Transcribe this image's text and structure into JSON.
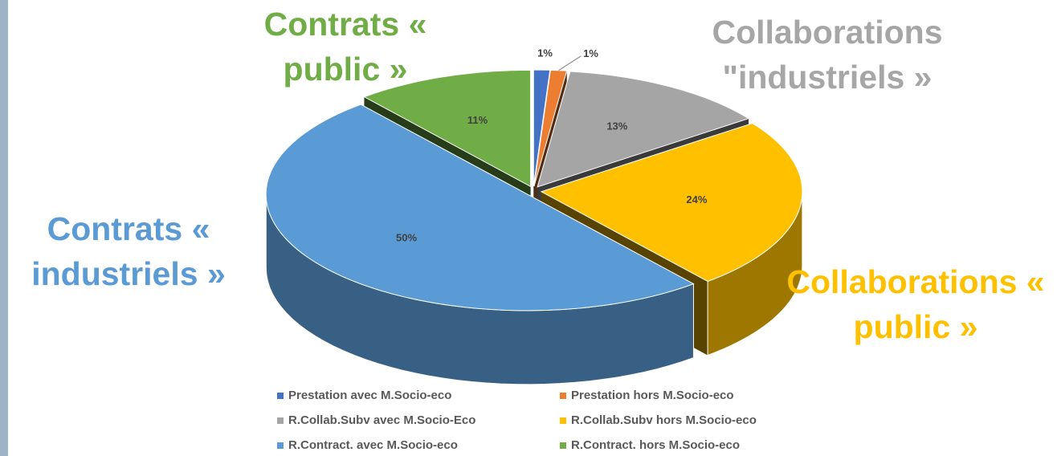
{
  "chart_data": {
    "type": "pie",
    "categories": [
      "Prestation avec M.Socio-eco",
      "Prestation hors M.Socio-eco",
      "R.Collab.Subv avec M.Socio-Eco",
      "R.Collab.Subv hors M.Socio-eco",
      "R.Contract. avec M.Socio-eco",
      "R.Contract. hors M.Socio-eco"
    ],
    "values": [
      1,
      1,
      13,
      24,
      50,
      11
    ],
    "value_labels": [
      "1%",
      "1%",
      "13%",
      "24%",
      "50%",
      "11%"
    ],
    "colors": [
      "#4472c4",
      "#ed7d31",
      "#a5a5a5",
      "#ffc000",
      "#5b9bd5",
      "#70ad47"
    ],
    "legend": "bottom",
    "annotations": [
      {
        "text": "Contrats « public »",
        "color": "#70ad47"
      },
      {
        "text": "Collaborations \"industriels »",
        "color": "#a6a6a6"
      },
      {
        "text": "Contrats « industriels »",
        "color": "#5b9bd5"
      },
      {
        "text": "Collaborations « public »",
        "color": "#ffc000"
      }
    ]
  }
}
